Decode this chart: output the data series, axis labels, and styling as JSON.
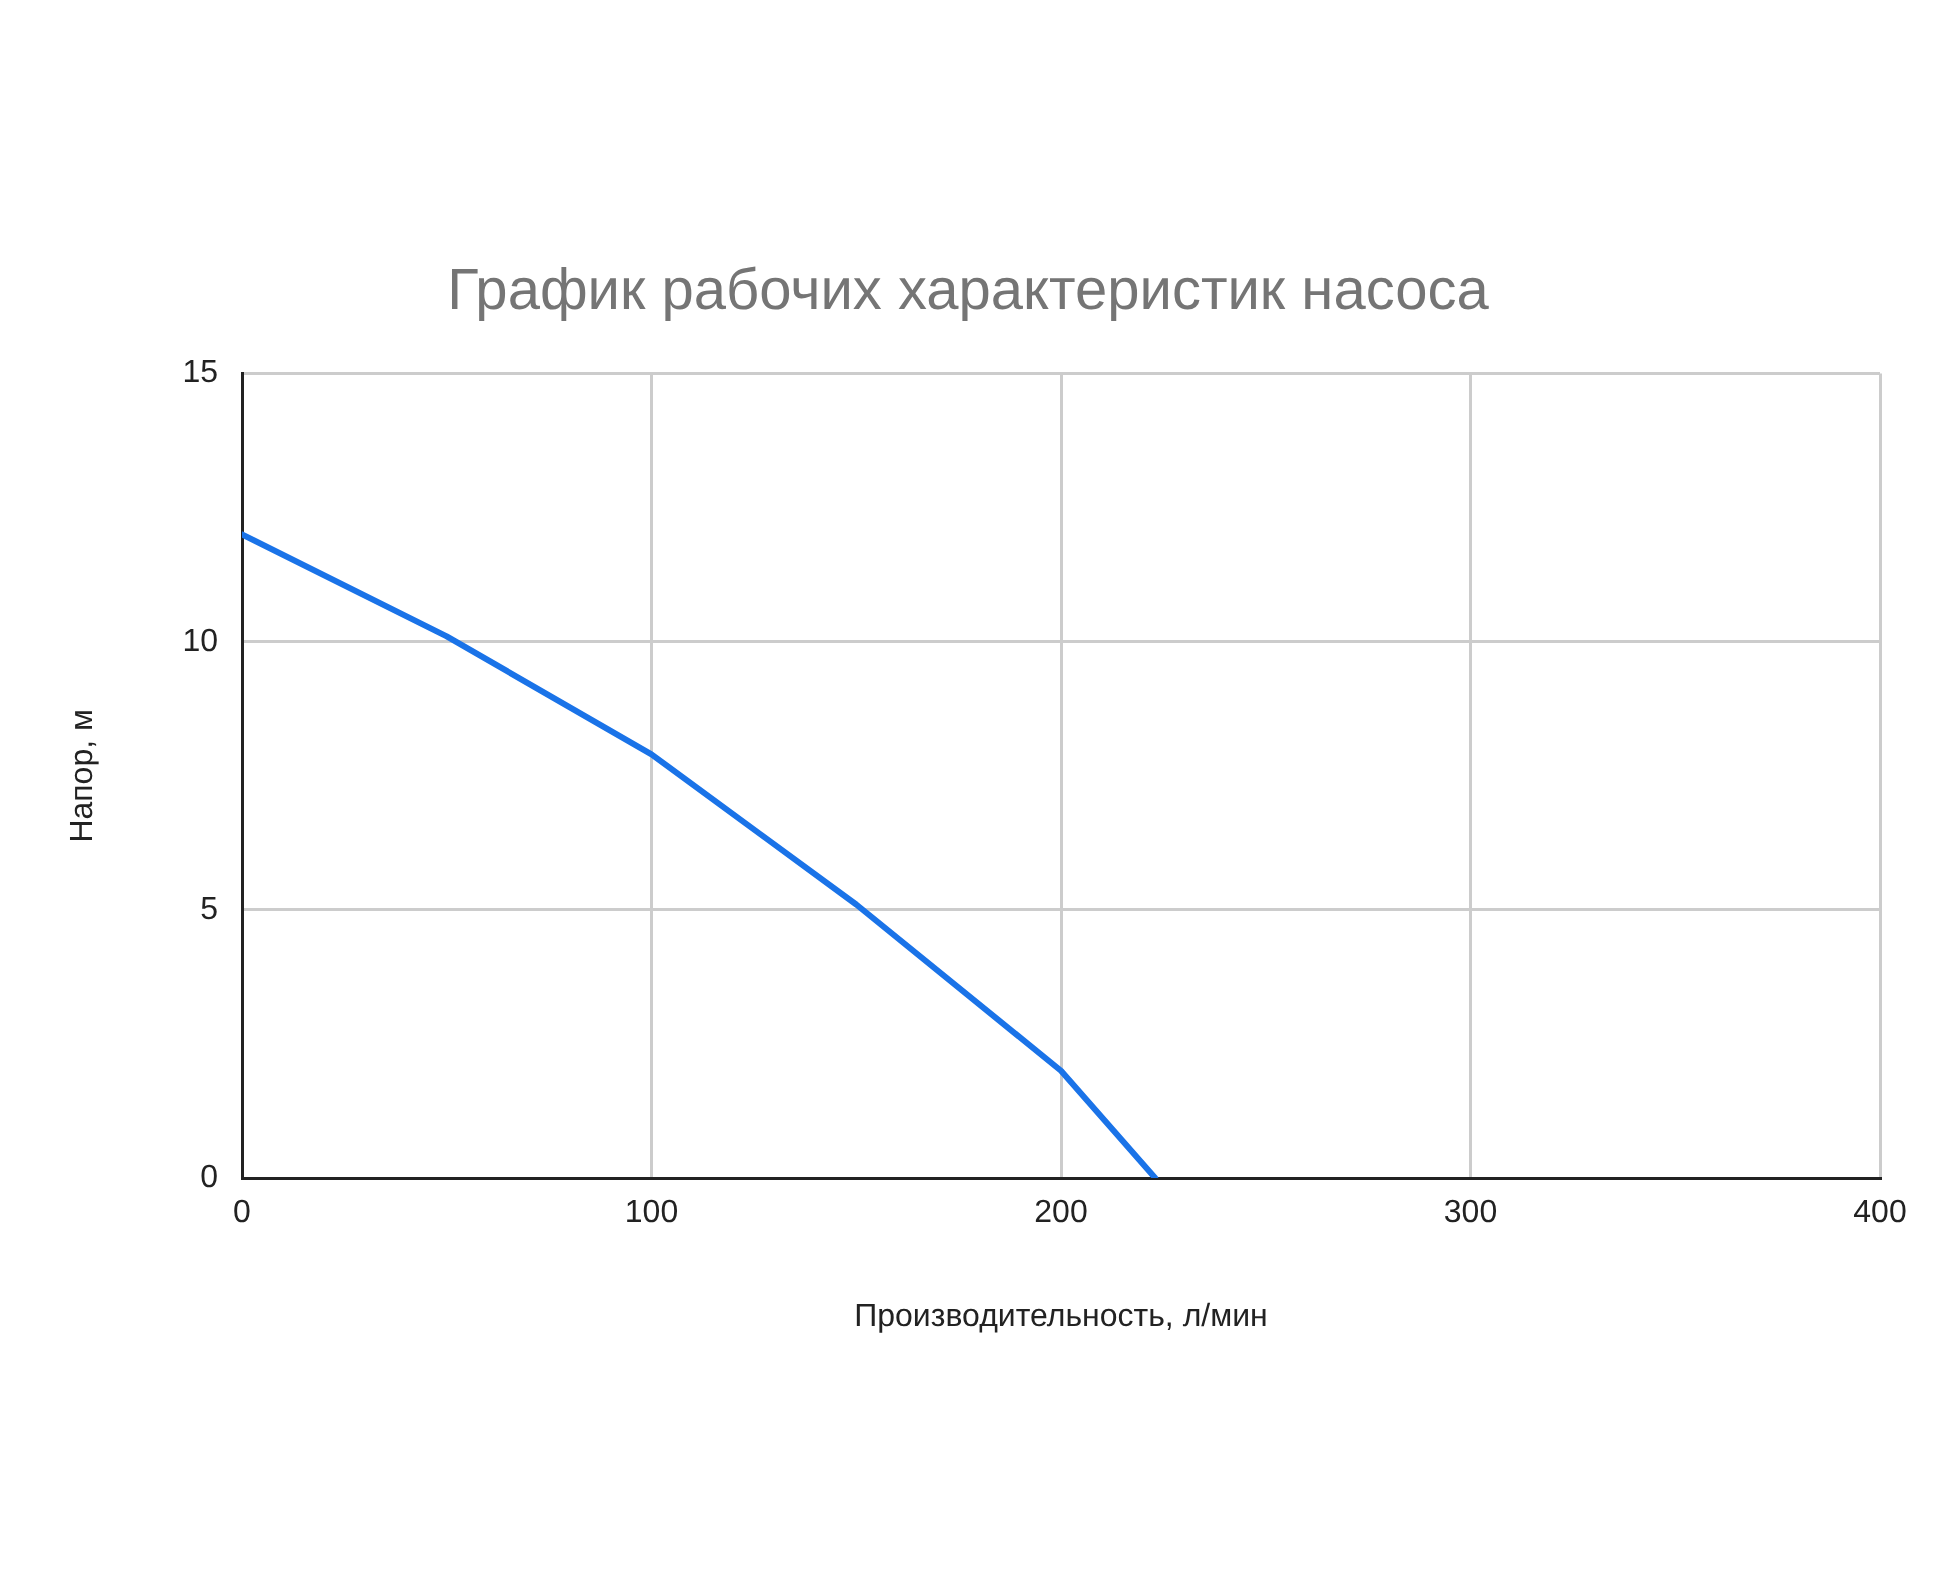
{
  "chart_data": {
    "type": "line",
    "title": "График рабочих характеристик насоса",
    "xlabel": "Производительность, л/мин",
    "ylabel": "Напор, м",
    "x": [
      0,
      50,
      100,
      150,
      200,
      223
    ],
    "series": [
      {
        "color": "#1a73e8",
        "values": [
          12,
          10.1,
          7.9,
          5.1,
          2,
          0
        ]
      }
    ],
    "xlim": [
      0,
      400
    ],
    "xticks": [
      0,
      100,
      200,
      300,
      400
    ],
    "ylim": [
      0,
      15
    ],
    "yticks": [
      0,
      5,
      10,
      15
    ],
    "grid": true,
    "legend": false,
    "marker": "none",
    "line_style": "solid"
  }
}
